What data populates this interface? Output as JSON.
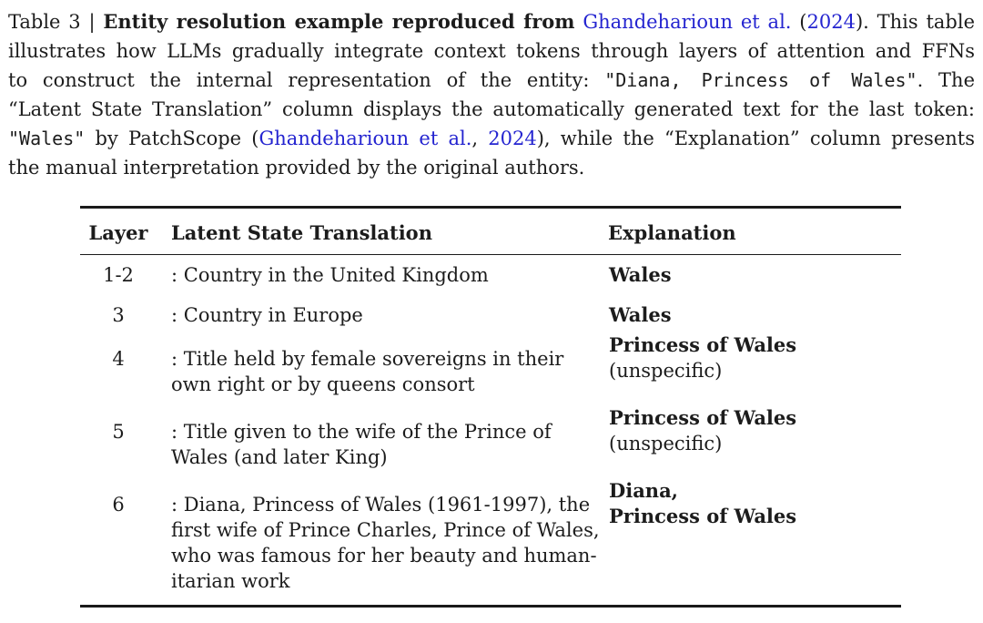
{
  "colors": {
    "text": "#1c1c1c",
    "link_blue": "#2424d0",
    "rule": "#1a1a1a",
    "background": "#ffffff"
  },
  "caption": {
    "lines": [
      [
        {
          "t": "Table 3 | ",
          "s": "n"
        },
        {
          "t": "Entity resolution example reproduced from",
          "s": "b"
        },
        {
          "t": " ",
          "s": "n"
        },
        {
          "t": "Ghandeharioun et al.",
          "s": "l"
        },
        {
          "t": " (",
          "s": "n"
        },
        {
          "t": "2024",
          "s": "l"
        },
        {
          "t": "). This table",
          "s": "n"
        }
      ],
      [
        {
          "t": "illustrates how LLMs gradually integrate context tokens through layers of attention and FFNs",
          "s": "n"
        }
      ],
      [
        {
          "t": "to construct the internal representation of the entity: ",
          "s": "n"
        },
        {
          "t": "\"Diana, Princess of Wales\"",
          "s": "m"
        },
        {
          "t": ". The",
          "s": "n"
        }
      ],
      [
        {
          "t": "“Latent State Translation” column displays the automatically generated text for the last token:",
          "s": "n"
        }
      ],
      [
        {
          "t": "\"Wales\"",
          "s": "m"
        },
        {
          "t": " by PatchScope (",
          "s": "n"
        },
        {
          "t": "Ghandeharioun et al.",
          "s": "l"
        },
        {
          "t": ", ",
          "s": "n"
        },
        {
          "t": "2024",
          "s": "l"
        },
        {
          "t": "), while the “Explanation” column presents",
          "s": "n"
        }
      ],
      [
        {
          "t": "the manual interpretation provided by the original authors.",
          "s": "n"
        }
      ]
    ]
  },
  "table": {
    "headers": [
      "Layer",
      "Latent State Translation",
      "Explanation"
    ],
    "rows": [
      {
        "layer": "1-2",
        "translation": [
          ": Country in the United Kingdom"
        ],
        "explanation": {
          "title": "Wales",
          "note": ""
        }
      },
      {
        "layer": "3",
        "translation": [
          ": Country in Europe"
        ],
        "explanation": {
          "title": "Wales",
          "note": ""
        }
      },
      {
        "layer": "4",
        "translation": [
          ": Title held by female sovereigns in their",
          "own right or by queens consort"
        ],
        "explanation": {
          "title": "Princess of Wales",
          "note": "(unspecific)"
        }
      },
      {
        "layer": "5",
        "translation": [
          ": Title given to the wife of the Prince of",
          "Wales (and later King)"
        ],
        "explanation": {
          "title": "Princess of Wales",
          "note": "(unspecific)"
        }
      },
      {
        "layer": "6",
        "translation": [
          ": Diana, Princess of Wales (1961-1997), the",
          "first wife of Prince Charles, Prince of Wales,",
          "who was famous for her beauty and human-",
          "itarian work"
        ],
        "explanation": {
          "title": [
            "Diana,",
            "Princess of Wales"
          ],
          "note": ""
        }
      }
    ]
  }
}
